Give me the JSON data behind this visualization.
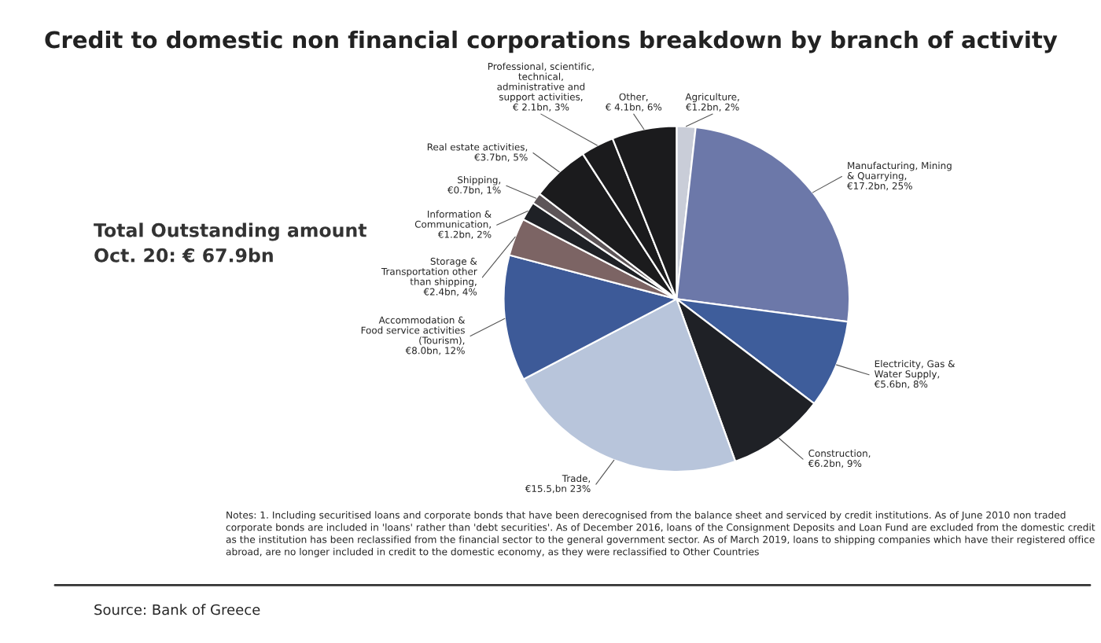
{
  "chart_data": {
    "type": "pie",
    "title": "Credit to domestic non financial corporations breakdown by branch of activity",
    "categories": [
      "Agriculture,\n€1.2bn, 2%",
      "Manufacturing, Mining\n& Quarrying,\n€17.2bn, 25%",
      "Electricity, Gas &\nWater Supply,\n€5.6bn, 8%",
      "Construction,\n€6.2bn, 9%",
      "Trade,\n€15.5,bn 23%",
      "Accommodation &\nFood service activities\n(Tourism),\n€8.0bn, 12%",
      "Storage &\nTransportation other\nthan shipping,\n€2.4bn, 4%",
      "Information &\nCommunication,\n€1.2bn, 2%",
      "Shipping,\n€0.7bn, 1%",
      "Real estate activities,\n€3.7bn, 5%",
      "Professional, scientific,\ntechnical,\nadministrative and\nsupport activities,\n€ 2.1bn, 3%",
      "Other,\n€ 4.1bn, 6%"
    ],
    "values": [
      1.2,
      17.2,
      5.6,
      6.2,
      15.5,
      8.0,
      2.4,
      1.2,
      0.7,
      3.7,
      2.1,
      4.1
    ],
    "colors": [
      "#c9cdd8",
      "#6c78a9",
      "#3e5d9b",
      "#1f2126",
      "#b8c5db",
      "#3d5a98",
      "#7c6464",
      "#1f2126",
      "#5d5558",
      "#1b1b1d",
      "#1b1b1d",
      "#1b1b1d"
    ],
    "annotations": [
      "Total Outstanding amount\nOct. 20: € 67.9bn",
      "Notes: 1. Including securitised loans and corporate bonds that have been derecognised from the balance sheet and serviced by credit institutions. As of June 2010 non traded corporate bonds are included in 'loans' rather than 'debt securities'. As of December 2016, loans of the Consignment Deposits and Loan Fund are excluded from the domestic credit as the institution has been reclassified from the financial sector to the general government sector. As of March 2019, loans to shipping companies which have their registered office abroad, are no longer included in credit to the domestic economy, as they were reclassified to Other Countries",
      "Source: Bank of Greece"
    ]
  }
}
